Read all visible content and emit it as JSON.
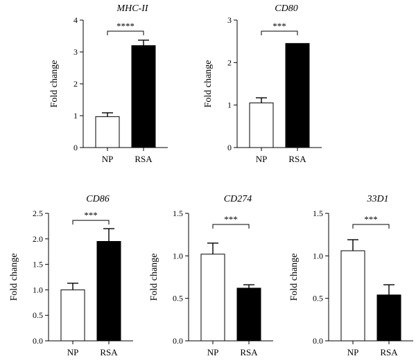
{
  "chart_data": [
    {
      "type": "bar",
      "title": "MHC-II",
      "ylabel": "Fold change",
      "categories": [
        "NP",
        "RSA"
      ],
      "values": [
        0.97,
        3.2
      ],
      "errors": [
        0.12,
        0.17
      ],
      "fills": [
        "#ffffff",
        "#000000"
      ],
      "ylim": [
        0,
        4
      ],
      "yticks": [
        "0",
        "1",
        "2",
        "3",
        "4"
      ],
      "significance": "****"
    },
    {
      "type": "bar",
      "title": "CD80",
      "ylabel": "Fold change",
      "categories": [
        "NP",
        "RSA"
      ],
      "values": [
        1.05,
        2.45
      ],
      "errors": [
        0.12,
        0.0
      ],
      "fills": [
        "#ffffff",
        "#000000"
      ],
      "ylim": [
        0,
        3
      ],
      "yticks": [
        "0",
        "1",
        "2",
        "3"
      ],
      "significance": "***"
    },
    {
      "type": "bar",
      "title": "CD86",
      "ylabel": "Fold change",
      "categories": [
        "NP",
        "RSA"
      ],
      "values": [
        1.0,
        1.95
      ],
      "errors": [
        0.13,
        0.25
      ],
      "fills": [
        "#ffffff",
        "#000000"
      ],
      "ylim": [
        0,
        2.5
      ],
      "yticks": [
        "0.0",
        "0.5",
        "1.0",
        "1.5",
        "2.0",
        "2.5"
      ],
      "significance": "***"
    },
    {
      "type": "bar",
      "title": "CD274",
      "ylabel": "Fold change",
      "categories": [
        "NP",
        "RSA"
      ],
      "values": [
        1.02,
        0.62
      ],
      "errors": [
        0.13,
        0.04
      ],
      "fills": [
        "#ffffff",
        "#000000"
      ],
      "ylim": [
        0,
        1.5
      ],
      "yticks": [
        "0.0",
        "0.5",
        "1.0",
        "1.5"
      ],
      "significance": "***"
    },
    {
      "type": "bar",
      "title": "33D1",
      "ylabel": "Fold change",
      "categories": [
        "NP",
        "RSA"
      ],
      "values": [
        1.06,
        0.54
      ],
      "errors": [
        0.13,
        0.12
      ],
      "fills": [
        "#ffffff",
        "#000000"
      ],
      "ylim": [
        0,
        1.5
      ],
      "yticks": [
        "0.0",
        "0.5",
        "1.0",
        "1.5"
      ],
      "significance": "***"
    }
  ]
}
